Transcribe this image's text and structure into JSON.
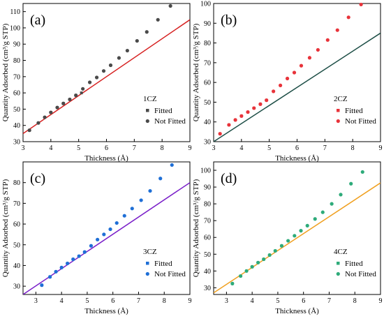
{
  "chart_data": [
    {
      "type": "scatter",
      "panel_label": "(a)",
      "sample_label": "1CZ",
      "xlabel": "Thickness (Å)",
      "ylabel": "Quantity Adsorbed (cm³/g STP)",
      "xlim": [
        3,
        9
      ],
      "ylim": [
        30,
        115
      ],
      "xticks": [
        3,
        4,
        5,
        6,
        7,
        8,
        9
      ],
      "yticks": [
        30,
        40,
        50,
        60,
        70,
        80,
        90,
        100,
        110
      ],
      "color": "#4a4a4a",
      "line_color": "#d62020",
      "marker": "circle",
      "legend_position": "right",
      "legend": [
        "Fitted",
        "Not Fitted"
      ],
      "fitted": {
        "x": [
          3.23,
          3.55,
          3.78,
          4.0,
          4.23,
          4.45,
          4.68,
          4.9,
          5.1
        ],
        "y": [
          37.0,
          41.5,
          45.0,
          48.0,
          51.0,
          53.5,
          56.0,
          58.5,
          60.0
        ]
      },
      "not_fitted": {
        "x": [
          3.23,
          3.55,
          3.78,
          4.0,
          4.23,
          4.45,
          4.68,
          4.9,
          5.15,
          5.4,
          5.65,
          5.9,
          6.15,
          6.45,
          6.75,
          7.1,
          7.45,
          7.85,
          8.3
        ],
        "y": [
          37.0,
          41.5,
          45.0,
          48.0,
          51.0,
          53.5,
          56.0,
          58.5,
          62.5,
          66.5,
          69.5,
          73.5,
          77.0,
          81.5,
          86.0,
          92.0,
          97.5,
          105.0,
          113.5
        ]
      },
      "fit_line": {
        "x": [
          3,
          9
        ],
        "y": [
          35.0,
          105.0
        ]
      }
    },
    {
      "type": "scatter",
      "panel_label": "(b)",
      "sample_label": "2CZ",
      "xlabel": "Thickness (Å)",
      "ylabel": "Quantity Adsorbed (cm³/g STP)",
      "xlim": [
        3,
        9
      ],
      "ylim": [
        30,
        100
      ],
      "xticks": [
        3,
        4,
        5,
        6,
        7,
        8,
        9
      ],
      "yticks": [
        30,
        40,
        50,
        60,
        70,
        80,
        90,
        100
      ],
      "color": "#e8333a",
      "line_color": "#1d4e46",
      "marker": "circle",
      "legend_position": "right",
      "legend": [
        "Fitted",
        "Not Fitted"
      ],
      "fitted": {
        "x": [
          3.23,
          3.55,
          3.78,
          4.0,
          4.23,
          4.45,
          4.68,
          4.9
        ],
        "y": [
          34.0,
          38.5,
          41.0,
          43.0,
          45.0,
          47.0,
          49.0,
          51.0
        ]
      },
      "not_fitted": {
        "x": [
          3.23,
          3.55,
          3.78,
          4.0,
          4.23,
          4.45,
          4.68,
          4.9,
          5.15,
          5.4,
          5.65,
          5.9,
          6.15,
          6.45,
          6.75,
          7.1,
          7.45,
          7.85,
          8.3
        ],
        "y": [
          34.0,
          38.5,
          41.0,
          43.0,
          45.0,
          47.0,
          49.0,
          51.0,
          55.5,
          58.5,
          62.0,
          65.0,
          68.5,
          72.5,
          76.5,
          81.5,
          86.5,
          93.0,
          99.5
        ]
      },
      "fit_line": {
        "x": [
          3,
          9
        ],
        "y": [
          30.0,
          85.0
        ]
      }
    },
    {
      "type": "scatter",
      "panel_label": "(c)",
      "sample_label": "3CZ",
      "xlabel": "Thickness (Å)",
      "ylabel": "Quantity Adsorbed (cm³/g STP)",
      "xlim": [
        2.5,
        9
      ],
      "ylim": [
        26,
        90
      ],
      "xticks": [
        3,
        4,
        5,
        6,
        7,
        8,
        9
      ],
      "yticks": [
        30,
        40,
        50,
        60,
        70,
        80
      ],
      "color": "#1f6fd6",
      "line_color": "#7a1fc9",
      "marker": "circle",
      "legend_position": "right",
      "legend": [
        "Fitted",
        "Not Fitted"
      ],
      "fitted": {
        "x": [
          3.23,
          3.55,
          3.78,
          4.0,
          4.23,
          4.45,
          4.68,
          4.9
        ],
        "y": [
          30.5,
          34.5,
          37.0,
          39.0,
          41.0,
          43.0,
          44.5,
          46.5
        ]
      },
      "not_fitted": {
        "x": [
          3.23,
          3.55,
          3.78,
          4.0,
          4.23,
          4.45,
          4.68,
          4.9,
          5.15,
          5.4,
          5.65,
          5.9,
          6.15,
          6.45,
          6.75,
          7.1,
          7.45,
          7.85,
          8.3
        ],
        "y": [
          30.5,
          34.5,
          37.0,
          39.0,
          41.0,
          43.0,
          44.5,
          46.5,
          49.5,
          52.5,
          55.0,
          57.5,
          60.5,
          64.0,
          67.5,
          71.5,
          76.0,
          82.0,
          88.5
        ]
      },
      "fit_line": {
        "x": [
          2.5,
          9
        ],
        "y": [
          26.0,
          80.0
        ]
      }
    },
    {
      "type": "scatter",
      "panel_label": "(d)",
      "sample_label": "4CZ",
      "xlabel": "Thickness (Å)",
      "ylabel": "Quantity Adsorbed (cm³/g STP)",
      "xlim": [
        2.5,
        9
      ],
      "ylim": [
        26,
        105
      ],
      "xticks": [
        3,
        4,
        5,
        6,
        7,
        8,
        9
      ],
      "yticks": [
        30,
        40,
        50,
        60,
        70,
        80,
        90,
        100
      ],
      "color": "#2eab7a",
      "line_color": "#f0a020",
      "marker": "circle",
      "legend_position": "right",
      "legend": [
        "Fitted",
        "Not Fitted"
      ],
      "fitted": {
        "x": [
          3.23,
          3.55,
          3.78,
          4.0,
          4.23,
          4.45,
          4.68,
          4.9,
          5.15
        ],
        "y": [
          32.5,
          37.0,
          40.0,
          42.5,
          45.0,
          47.0,
          49.5,
          52.0,
          55.0
        ]
      },
      "not_fitted": {
        "x": [
          3.23,
          3.55,
          3.78,
          4.0,
          4.23,
          4.45,
          4.68,
          4.9,
          5.15,
          5.4,
          5.65,
          5.9,
          6.15,
          6.45,
          6.75,
          7.1,
          7.45,
          7.85,
          8.3
        ],
        "y": [
          32.5,
          37.0,
          40.0,
          42.5,
          45.0,
          47.0,
          49.5,
          52.0,
          55.0,
          58.0,
          61.0,
          64.0,
          67.0,
          71.0,
          75.0,
          80.0,
          85.5,
          92.0,
          99.0
        ]
      },
      "fit_line": {
        "x": [
          2.5,
          9
        ],
        "y": [
          27.0,
          92.5
        ]
      }
    }
  ]
}
